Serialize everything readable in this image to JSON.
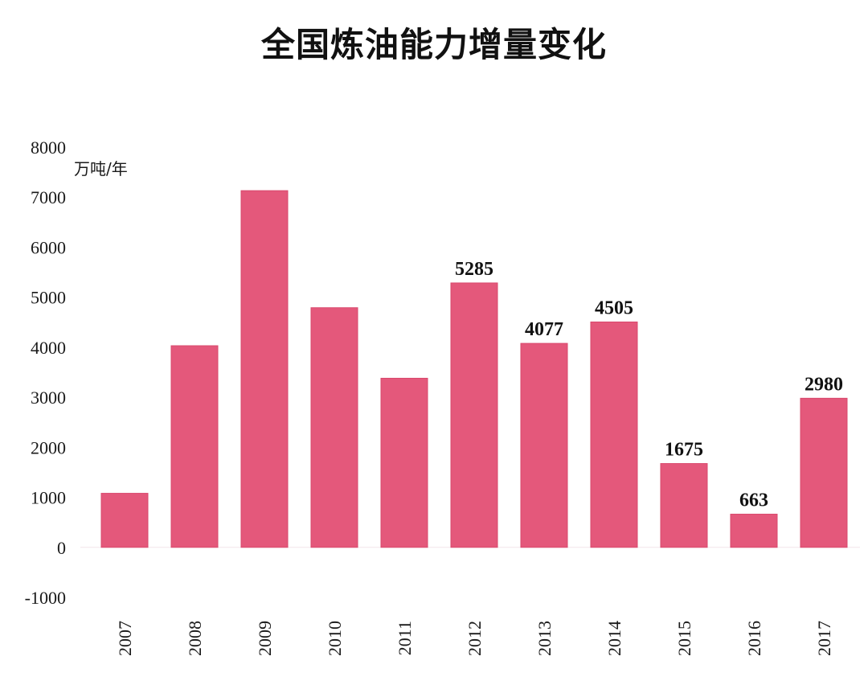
{
  "chart_data": {
    "type": "bar",
    "title": "全国炼油能力增量变化",
    "ylabel": "万吨/年",
    "xlabel": "",
    "categories": [
      "2007",
      "2008",
      "2009",
      "2010",
      "2011",
      "2012",
      "2013",
      "2014",
      "2015",
      "2016",
      "2017"
    ],
    "series": [
      {
        "values": [
          1080,
          4030,
          7130,
          4790,
          3380,
          5285,
          4077,
          4505,
          1675,
          663,
          2980
        ]
      }
    ],
    "data_labels": [
      "",
      "",
      "",
      "",
      "",
      "5285",
      "4077",
      "4505",
      "1675",
      "663",
      "2980"
    ],
    "ylim": [
      -1000,
      8000
    ],
    "yticks": [
      "8000",
      "7000",
      "6000",
      "5000",
      "4000",
      "3000",
      "2000",
      "1000",
      "0",
      "-1000"
    ],
    "bar_color": "#e4587b",
    "grid": false,
    "legend": "none"
  }
}
